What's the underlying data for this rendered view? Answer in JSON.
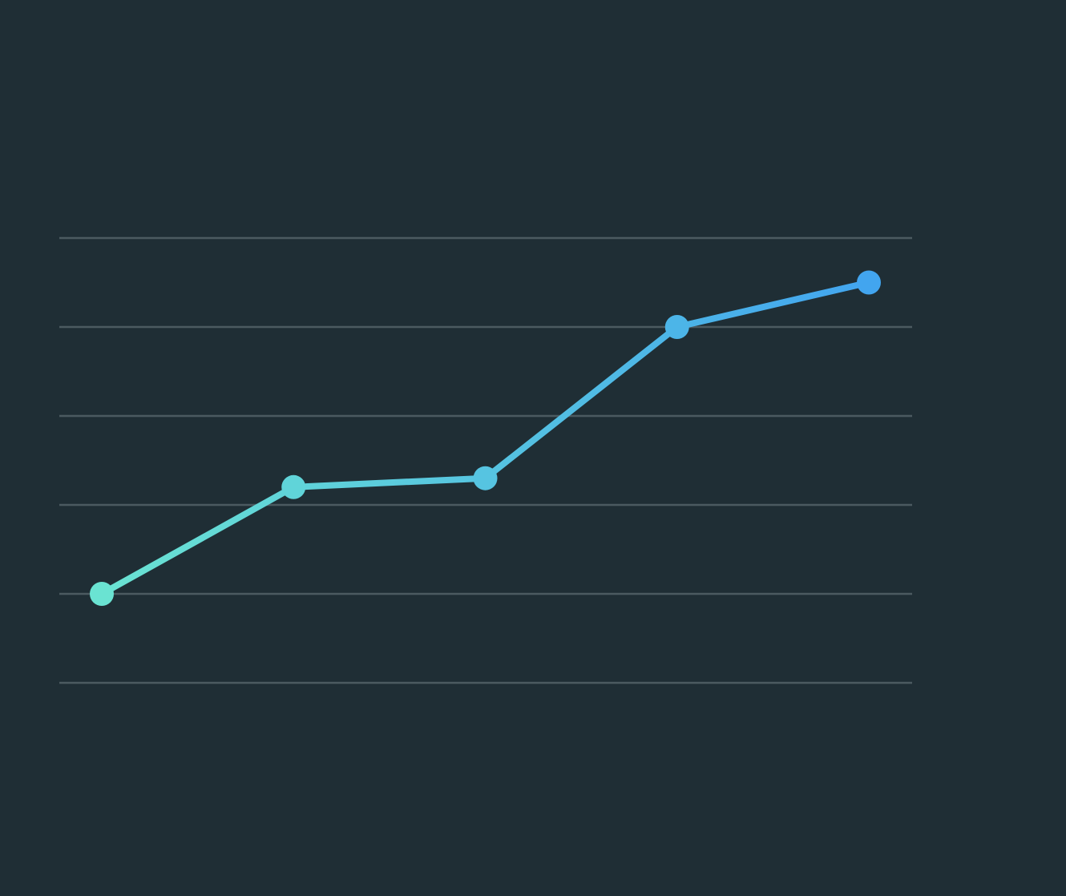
{
  "colors": {
    "background": "#1f2e35",
    "gridline": "#4b5a60",
    "line_start": "#6ae3d2",
    "line_end": "#42a5ef"
  },
  "chart_data": {
    "type": "line",
    "categories": [
      "",
      "",
      "",
      "",
      ""
    ],
    "series": [
      {
        "values": [
          1.0,
          2.2,
          2.3,
          4.0,
          4.5
        ]
      }
    ],
    "ylim": [
      0,
      5
    ],
    "y_gridlines": [
      0,
      1,
      2,
      3,
      4,
      5
    ],
    "grid": true,
    "legend": "none",
    "title": "",
    "xlabel": "",
    "ylabel": ""
  }
}
